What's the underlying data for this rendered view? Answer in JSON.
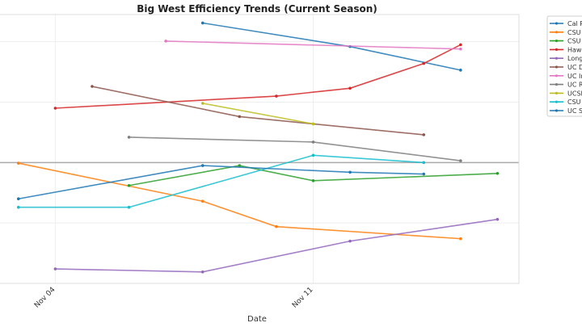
{
  "chart_data": {
    "type": "line",
    "title": "Big West Efficiency Trends (Current Season)",
    "xlabel": "Date",
    "ylabel": "",
    "x_ticks": [
      {
        "date": "2024-11-04",
        "label": "Nov 04"
      },
      {
        "date": "2024-11-11",
        "label": "Nov 11"
      }
    ],
    "xlim": [
      "2024-11-02T12:00",
      "2024-11-16T14:00"
    ],
    "ylim": [
      -20,
      24.5
    ],
    "y_gridlines": [
      -20,
      -10,
      0,
      10,
      20
    ],
    "reference_line_y": 0,
    "grid": true,
    "legend_placement": "outside-right",
    "series": [
      {
        "name": "Cal P",
        "color": "#1f77b4",
        "points": [
          [
            "2024-11-08",
            23.1
          ],
          [
            "2024-11-12",
            19.2
          ],
          [
            "2024-11-15",
            15.3
          ]
        ]
      },
      {
        "name": "CSU",
        "color": "#ff7f0e",
        "points": [
          [
            "2024-11-03",
            -0.1
          ],
          [
            "2024-11-08",
            -6.4
          ],
          [
            "2024-11-10",
            -10.6
          ],
          [
            "2024-11-15",
            -12.6
          ]
        ]
      },
      {
        "name": "CSU",
        "color": "#2ca02c",
        "points": [
          [
            "2024-11-06",
            -3.8
          ],
          [
            "2024-11-09",
            -0.5
          ],
          [
            "2024-11-11",
            -3.0
          ],
          [
            "2024-11-16",
            -1.8
          ]
        ]
      },
      {
        "name": "Hawa",
        "color": "#d62728",
        "points": [
          [
            "2024-11-04",
            9.0
          ],
          [
            "2024-11-10",
            11.0
          ],
          [
            "2024-11-12",
            12.3
          ],
          [
            "2024-11-14",
            16.4
          ],
          [
            "2024-11-15",
            19.5
          ]
        ]
      },
      {
        "name": "Long",
        "color": "#9467bd",
        "points": [
          [
            "2024-11-04",
            -17.6
          ],
          [
            "2024-11-08",
            -18.1
          ],
          [
            "2024-11-12",
            -13.0
          ],
          [
            "2024-11-16",
            -9.4
          ]
        ]
      },
      {
        "name": "UC D",
        "color": "#8c564b",
        "points": [
          [
            "2024-11-05",
            12.6
          ],
          [
            "2024-11-09",
            7.6
          ],
          [
            "2024-11-14",
            4.6
          ]
        ]
      },
      {
        "name": "UC Ir",
        "color": "#e377c2",
        "points": [
          [
            "2024-11-07",
            20.1
          ],
          [
            "2024-11-15",
            18.8
          ]
        ]
      },
      {
        "name": "UC R",
        "color": "#7f7f7f",
        "points": [
          [
            "2024-11-06",
            4.2
          ],
          [
            "2024-11-11",
            3.4
          ],
          [
            "2024-11-15",
            0.3
          ]
        ]
      },
      {
        "name": "UCSE",
        "color": "#bcbd22",
        "points": [
          [
            "2024-11-08",
            9.8
          ],
          [
            "2024-11-11",
            6.4
          ]
        ]
      },
      {
        "name": "CSU",
        "color": "#17becf",
        "points": [
          [
            "2024-11-03",
            -7.4
          ],
          [
            "2024-11-06",
            -7.4
          ],
          [
            "2024-11-11",
            1.2
          ],
          [
            "2024-11-14",
            0.0
          ]
        ]
      },
      {
        "name": "UC S",
        "color": "#1f77b4",
        "points": [
          [
            "2024-11-03",
            -6.0
          ],
          [
            "2024-11-08",
            -0.5
          ],
          [
            "2024-11-12",
            -1.6
          ],
          [
            "2024-11-14",
            -1.9
          ]
        ]
      }
    ]
  }
}
